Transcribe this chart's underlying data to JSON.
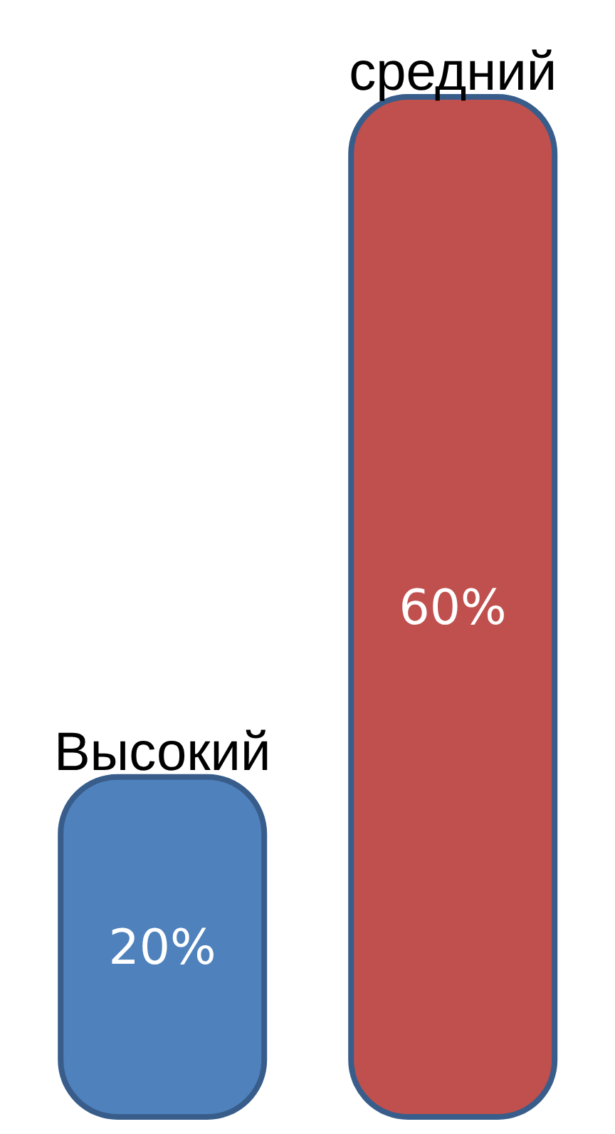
{
  "chart_data": {
    "type": "bar",
    "categories": [
      "Высокий",
      "средний"
    ],
    "values": [
      20,
      60
    ],
    "colors": [
      "#4f81bd",
      "#c0504d"
    ],
    "value_labels": [
      "20%",
      "60%"
    ]
  }
}
